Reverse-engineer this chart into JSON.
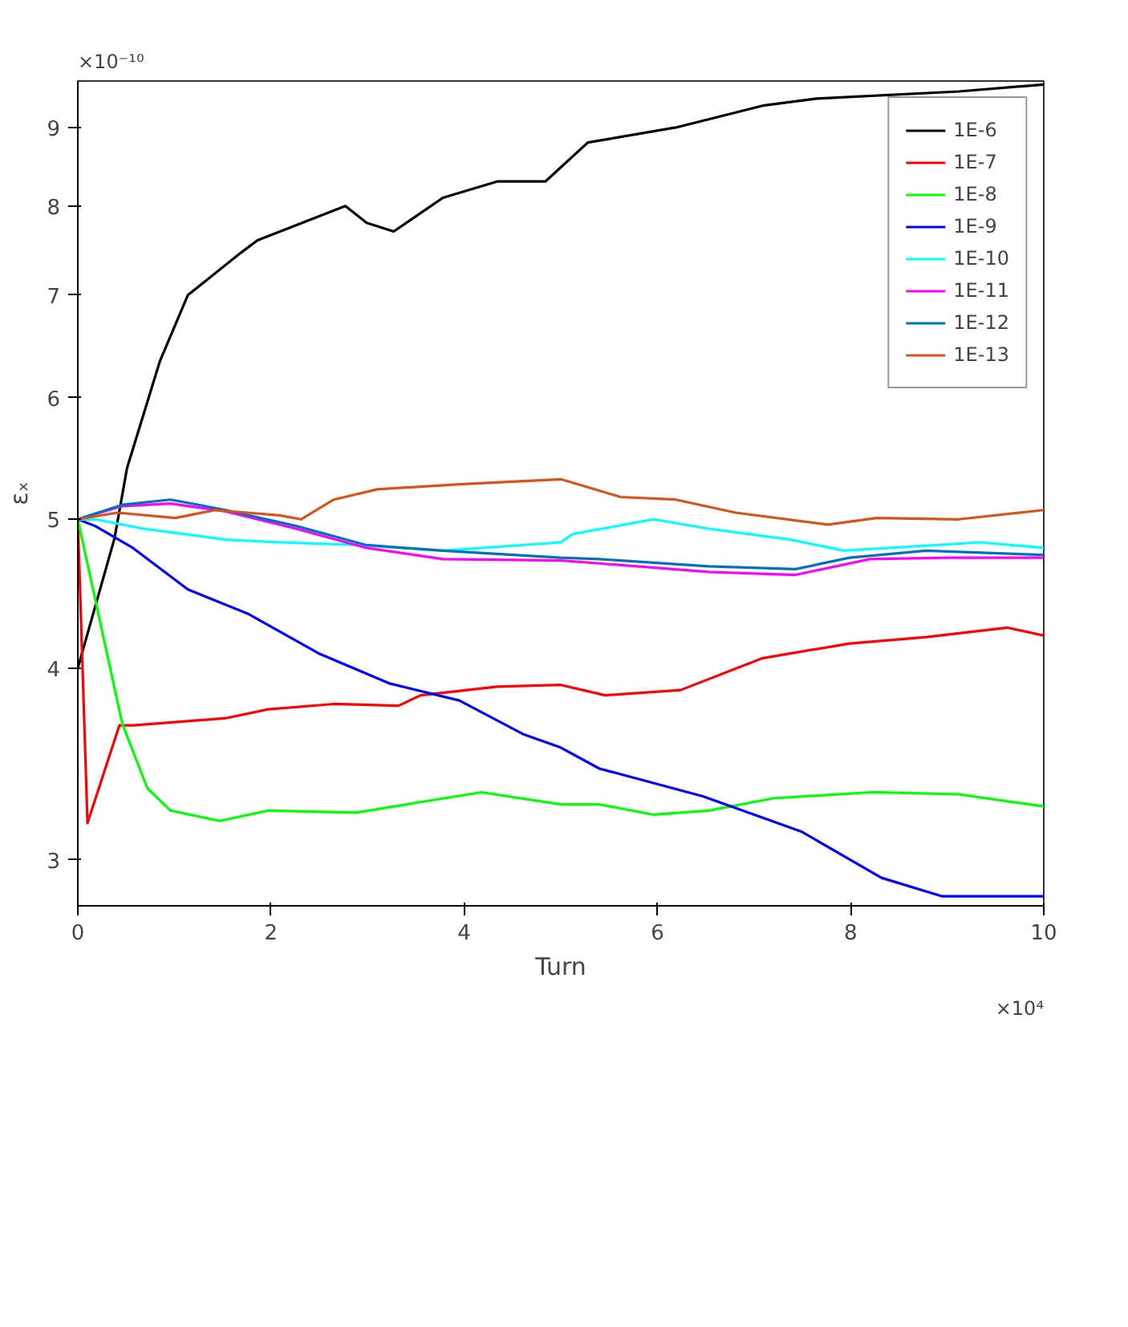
{
  "chart_data": {
    "type": "line",
    "xlabel": "Turn",
    "ylabel": "εₓ",
    "annotations": [
      "×10⁴",
      "×10⁻¹⁰"
    ],
    "xlim": [
      0,
      10
    ],
    "xticks": [
      0,
      2,
      4,
      6,
      8,
      10
    ],
    "ylim": [
      2.8,
      9.65
    ],
    "yticks": [
      3,
      4,
      5,
      6,
      7,
      8,
      9
    ],
    "log": "y",
    "grid": false,
    "legend": "top right",
    "marker": "none",
    "line_style": "solid",
    "series": [
      {
        "name": "1E-6",
        "color": "#000000",
        "x": [
          0,
          0.38,
          0.51,
          0.85,
          1.14,
          1.69,
          1.86,
          2.77,
          2.99,
          3.27,
          3.78,
          4.34,
          4.84,
          5.28,
          6.19,
          7.09,
          7.65,
          9.12,
          10
        ],
        "values": [
          4.0,
          4.86,
          5.4,
          6.34,
          7.0,
          7.46,
          7.6,
          8.0,
          7.8,
          7.7,
          8.1,
          8.3,
          8.3,
          8.8,
          9.0,
          9.3,
          9.4,
          9.5,
          9.6
        ]
      },
      {
        "name": "1E-7",
        "color": "#ff0000",
        "x": [
          0,
          0.1,
          0.43,
          0.57,
          1.53,
          1.97,
          2.65,
          3.32,
          3.55,
          4.34,
          5.0,
          5.46,
          6.24,
          7.09,
          7.99,
          8.78,
          9.62,
          10
        ],
        "values": [
          5.0,
          3.17,
          3.67,
          3.67,
          3.71,
          3.76,
          3.79,
          3.78,
          3.84,
          3.89,
          3.9,
          3.84,
          3.87,
          4.06,
          4.15,
          4.19,
          4.25,
          4.2
        ]
      },
      {
        "name": "1E-8",
        "color": "#00ff00",
        "x": [
          0,
          0.46,
          0.72,
          0.96,
          1.47,
          1.97,
          2.88,
          3.66,
          4.18,
          5.0,
          5.4,
          5.96,
          6.53,
          7.2,
          8.22,
          9.12,
          10
        ],
        "values": [
          5.0,
          3.68,
          3.34,
          3.23,
          3.18,
          3.23,
          3.22,
          3.28,
          3.32,
          3.26,
          3.26,
          3.21,
          3.23,
          3.29,
          3.32,
          3.31,
          3.25
        ]
      },
      {
        "name": "1E-9",
        "color": "#0000ff",
        "x": [
          0,
          0.18,
          0.57,
          1.14,
          1.76,
          2.49,
          3.22,
          3.95,
          4.62,
          5.0,
          5.4,
          6.47,
          7.49,
          8.32,
          8.95,
          10
        ],
        "values": [
          5.0,
          4.95,
          4.79,
          4.5,
          4.34,
          4.09,
          3.91,
          3.81,
          3.62,
          3.55,
          3.44,
          3.3,
          3.13,
          2.92,
          2.84,
          2.84
        ]
      },
      {
        "name": "1E-10",
        "color": "#00ffff",
        "x": [
          0,
          0.18,
          0.68,
          1.53,
          2.09,
          2.93,
          3.78,
          5.0,
          5.12,
          5.96,
          6.53,
          7.38,
          7.93,
          9.34,
          10
        ],
        "values": [
          5.0,
          5.0,
          4.93,
          4.85,
          4.83,
          4.81,
          4.77,
          4.83,
          4.89,
          5.0,
          4.93,
          4.85,
          4.77,
          4.83,
          4.79
        ]
      },
      {
        "name": "1E-11",
        "color": "#ff00ff",
        "x": [
          0,
          0.46,
          0.96,
          1.53,
          2.26,
          2.99,
          3.78,
          5.0,
          5.4,
          6.53,
          7.43,
          8.2,
          9.0,
          10
        ],
        "values": [
          5.0,
          5.1,
          5.12,
          5.06,
          4.93,
          4.79,
          4.71,
          4.7,
          4.68,
          4.62,
          4.6,
          4.71,
          4.72,
          4.72
        ]
      },
      {
        "name": "1E-12",
        "color": "#0072bd",
        "x": [
          0,
          0.46,
          0.96,
          1.53,
          2.26,
          2.99,
          3.78,
          5.0,
          5.4,
          6.53,
          7.43,
          7.99,
          8.78,
          10
        ],
        "values": [
          5.0,
          5.11,
          5.15,
          5.07,
          4.95,
          4.81,
          4.77,
          4.72,
          4.71,
          4.66,
          4.64,
          4.72,
          4.77,
          4.74
        ]
      },
      {
        "name": "1E-13",
        "color": "#d95319",
        "x": [
          0,
          0.41,
          1.01,
          1.42,
          2.09,
          2.31,
          2.65,
          3.1,
          3.95,
          5.0,
          5.62,
          6.19,
          6.81,
          7.77,
          8.27,
          9.12,
          10
        ],
        "values": [
          5.0,
          5.05,
          5.01,
          5.07,
          5.03,
          5.0,
          5.15,
          5.23,
          5.27,
          5.31,
          5.17,
          5.15,
          5.05,
          4.96,
          5.01,
          5.0,
          5.07
        ]
      }
    ]
  }
}
